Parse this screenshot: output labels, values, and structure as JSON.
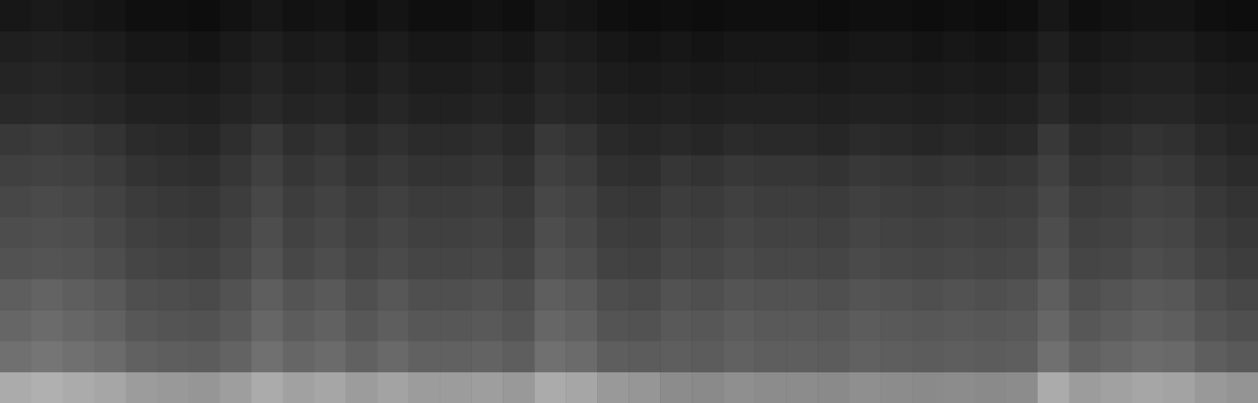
{
  "chart_data": {
    "type": "heatmap",
    "tick_labels": false,
    "zlim": [
      0,
      100
    ],
    "cells": [
      [
        67,
        69,
        67,
        65,
        61,
        60,
        59,
        62,
        67,
        63,
        65,
        61,
        64,
        61,
        61,
        62,
        60,
        67,
        65,
        60,
        59,
        55,
        54,
        56,
        55,
        55,
        54,
        56,
        55,
        54,
        55,
        54,
        55,
        67,
        61,
        63,
        65,
        64,
        60,
        58
      ],
      [
        44,
        46,
        44,
        42,
        38,
        37,
        36,
        39,
        44,
        40,
        42,
        38,
        41,
        38,
        38,
        39,
        37,
        44,
        42,
        37,
        36,
        37,
        36,
        38,
        37,
        37,
        36,
        38,
        37,
        36,
        37,
        36,
        37,
        44,
        38,
        40,
        42,
        41,
        37,
        35
      ],
      [
        40,
        42,
        40,
        38,
        34,
        33,
        32,
        35,
        40,
        36,
        38,
        34,
        37,
        34,
        34,
        35,
        33,
        40,
        38,
        33,
        32,
        35,
        34,
        36,
        35,
        35,
        34,
        36,
        35,
        34,
        35,
        34,
        35,
        40,
        34,
        36,
        38,
        37,
        33,
        31
      ],
      [
        37,
        39,
        37,
        35,
        31,
        30,
        29,
        32,
        37,
        33,
        35,
        31,
        34,
        31,
        31,
        32,
        30,
        37,
        35,
        30,
        29,
        32,
        31,
        33,
        32,
        32,
        31,
        33,
        32,
        31,
        32,
        31,
        32,
        37,
        31,
        33,
        35,
        34,
        30,
        28
      ],
      [
        32,
        33,
        32,
        30,
        27,
        26,
        25,
        28,
        32,
        28,
        30,
        27,
        29,
        27,
        27,
        28,
        26,
        32,
        30,
        26,
        25,
        28,
        27,
        29,
        28,
        28,
        27,
        29,
        28,
        27,
        28,
        27,
        28,
        32,
        27,
        28,
        30,
        29,
        26,
        24
      ],
      [
        30,
        31,
        30,
        28,
        25,
        24,
        23,
        26,
        30,
        26,
        28,
        25,
        27,
        25,
        25,
        26,
        24,
        30,
        28,
        24,
        23,
        26,
        25,
        27,
        26,
        26,
        25,
        27,
        26,
        25,
        26,
        25,
        26,
        30,
        25,
        26,
        28,
        27,
        24,
        22
      ],
      [
        28,
        29,
        28,
        26,
        23,
        22,
        21,
        24,
        28,
        24,
        26,
        23,
        25,
        23,
        23,
        24,
        22,
        28,
        26,
        22,
        21,
        24,
        23,
        25,
        24,
        24,
        23,
        25,
        24,
        23,
        24,
        23,
        24,
        28,
        23,
        24,
        26,
        25,
        22,
        20
      ],
      [
        25,
        26,
        25,
        23,
        20,
        19,
        18,
        21,
        25,
        21,
        23,
        20,
        22,
        20,
        20,
        21,
        19,
        25,
        23,
        19,
        18,
        21,
        20,
        22,
        21,
        21,
        20,
        22,
        21,
        20,
        21,
        20,
        21,
        25,
        20,
        21,
        23,
        22,
        19,
        17
      ],
      [
        22,
        23,
        22,
        20,
        17,
        16,
        15,
        18,
        22,
        18,
        20,
        17,
        19,
        17,
        17,
        18,
        16,
        22,
        20,
        16,
        15,
        16,
        15,
        17,
        16,
        16,
        15,
        17,
        16,
        15,
        16,
        15,
        16,
        22,
        17,
        18,
        20,
        19,
        16,
        14
      ],
      [
        16,
        17,
        16,
        15,
        13,
        13,
        12,
        14,
        16,
        14,
        15,
        13,
        15,
        13,
        13,
        14,
        13,
        16,
        15,
        13,
        12,
        13,
        12,
        13,
        13,
        13,
        12,
        13,
        13,
        12,
        13,
        12,
        13,
        16,
        13,
        14,
        15,
        15,
        13,
        12
      ],
      [
        14,
        15,
        14,
        13,
        11,
        11,
        10,
        12,
        14,
        12,
        13,
        11,
        13,
        11,
        11,
        12,
        11,
        14,
        13,
        11,
        10,
        11,
        10,
        11,
        11,
        11,
        10,
        11,
        11,
        10,
        11,
        10,
        11,
        14,
        11,
        12,
        13,
        13,
        11,
        10
      ],
      [
        12,
        13,
        12,
        11,
        9,
        9,
        8,
        10,
        12,
        10,
        11,
        9,
        11,
        9,
        9,
        10,
        9,
        12,
        11,
        9,
        8,
        9,
        8,
        9,
        9,
        9,
        8,
        9,
        9,
        8,
        9,
        8,
        9,
        12,
        9,
        10,
        11,
        11,
        9,
        8
      ],
      [
        9,
        10,
        9,
        8,
        6,
        6,
        5,
        7,
        9,
        7,
        8,
        6,
        8,
        6,
        6,
        7,
        6,
        9,
        8,
        6,
        5,
        6,
        5,
        6,
        6,
        6,
        5,
        6,
        6,
        5,
        6,
        5,
        6,
        9,
        6,
        7,
        8,
        8,
        6,
        5
      ]
    ]
  }
}
